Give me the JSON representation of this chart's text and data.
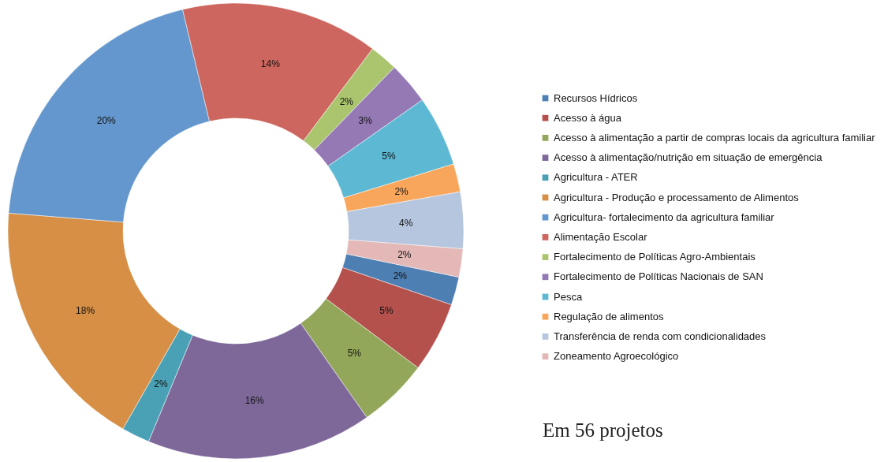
{
  "chart_data": {
    "type": "donut",
    "categories": [
      "Recursos Hídricos",
      "Acesso à água",
      "Acesso à alimentação a partir de compras locais da agricultura familiar",
      "Acesso à alimentação/nutrição em situação de emergência",
      "Agricultura - ATER",
      "Agricultura - Produção e processamento de Alimentos",
      "Agricultura- fortalecimento da agricultura familiar",
      "Alimentação Escolar",
      "Fortalecimento de Políticas Agro-Ambientais",
      "Fortalecimento de Políticas Nacionais de SAN",
      "Pesca",
      "Regulação de alimentos",
      "Transferência de renda com condicionalidades",
      "Zoneamento Agroecológico"
    ],
    "values": [
      2,
      5,
      5,
      16,
      2,
      18,
      20,
      14,
      2,
      3,
      5,
      2,
      4,
      2
    ],
    "value_labels": [
      "2%",
      "5%",
      "5%",
      "16%",
      "2%",
      "18%",
      "20%",
      "14%",
      "2%",
      "3%",
      "5%",
      "2%",
      "4%",
      "2%"
    ],
    "colors": [
      "#4e7fb3",
      "#b5514d",
      "#93a75a",
      "#7e689a",
      "#4aa1b6",
      "#d68f45",
      "#6497cd",
      "#cd665e",
      "#abc56e",
      "#9479b5",
      "#5cb8d3",
      "#f8a65b",
      "#b6c6df",
      "#e3b8b6"
    ],
    "legend": "right",
    "annotations": [
      "Em 56 projetos"
    ]
  }
}
